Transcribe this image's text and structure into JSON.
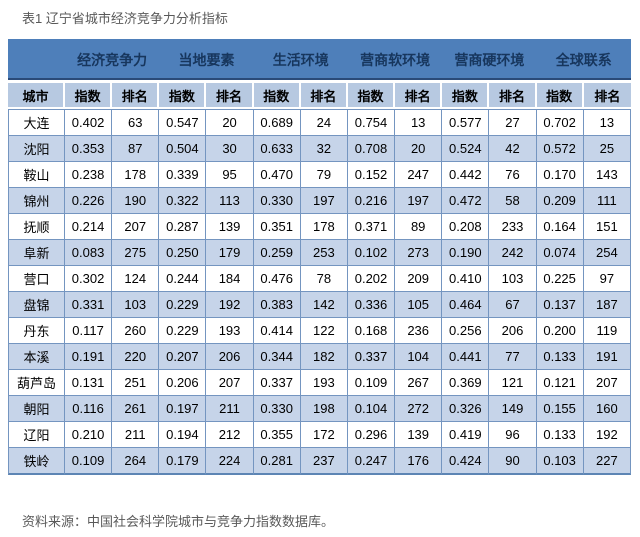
{
  "title": "表1 辽宁省城市经济竞争力分析指标",
  "source": "资料来源：中国社会科学院城市与竞争力指数数据库。",
  "colors": {
    "header_bg": "#4e7fba",
    "header_text": "#17365d",
    "subheader_bg": "#b7c9e1",
    "row_alt_bg": "#c6d4e9",
    "grid_border": "#7495c0",
    "muted_text": "#595959"
  },
  "table": {
    "corner_label": "城市",
    "groups": [
      "经济竞争力",
      "当地要素",
      "生活环境",
      "营商软环境",
      "营商硬环境",
      "全球联系"
    ],
    "index_label": "指数",
    "rank_label": "排名",
    "rows": [
      {
        "city": "大连",
        "cells": [
          "0.402",
          "63",
          "0.547",
          "20",
          "0.689",
          "24",
          "0.754",
          "13",
          "0.577",
          "27",
          "0.702",
          "13"
        ]
      },
      {
        "city": "沈阳",
        "cells": [
          "0.353",
          "87",
          "0.504",
          "30",
          "0.633",
          "32",
          "0.708",
          "20",
          "0.524",
          "42",
          "0.572",
          "25"
        ]
      },
      {
        "city": "鞍山",
        "cells": [
          "0.238",
          "178",
          "0.339",
          "95",
          "0.470",
          "79",
          "0.152",
          "247",
          "0.442",
          "76",
          "0.170",
          "143"
        ]
      },
      {
        "city": "锦州",
        "cells": [
          "0.226",
          "190",
          "0.322",
          "113",
          "0.330",
          "197",
          "0.216",
          "197",
          "0.472",
          "58",
          "0.209",
          "111"
        ]
      },
      {
        "city": "抚顺",
        "cells": [
          "0.214",
          "207",
          "0.287",
          "139",
          "0.351",
          "178",
          "0.371",
          "89",
          "0.208",
          "233",
          "0.164",
          "151"
        ]
      },
      {
        "city": "阜新",
        "cells": [
          "0.083",
          "275",
          "0.250",
          "179",
          "0.259",
          "253",
          "0.102",
          "273",
          "0.190",
          "242",
          "0.074",
          "254"
        ]
      },
      {
        "city": "营口",
        "cells": [
          "0.302",
          "124",
          "0.244",
          "184",
          "0.476",
          "78",
          "0.202",
          "209",
          "0.410",
          "103",
          "0.225",
          "97"
        ]
      },
      {
        "city": "盘锦",
        "cells": [
          "0.331",
          "103",
          "0.229",
          "192",
          "0.383",
          "142",
          "0.336",
          "105",
          "0.464",
          "67",
          "0.137",
          "187"
        ]
      },
      {
        "city": "丹东",
        "cells": [
          "0.117",
          "260",
          "0.229",
          "193",
          "0.414",
          "122",
          "0.168",
          "236",
          "0.256",
          "206",
          "0.200",
          "119"
        ]
      },
      {
        "city": "本溪",
        "cells": [
          "0.191",
          "220",
          "0.207",
          "206",
          "0.344",
          "182",
          "0.337",
          "104",
          "0.441",
          "77",
          "0.133",
          "191"
        ]
      },
      {
        "city": "葫芦岛",
        "cells": [
          "0.131",
          "251",
          "0.206",
          "207",
          "0.337",
          "193",
          "0.109",
          "267",
          "0.369",
          "121",
          "0.121",
          "207"
        ]
      },
      {
        "city": "朝阳",
        "cells": [
          "0.116",
          "261",
          "0.197",
          "211",
          "0.330",
          "198",
          "0.104",
          "272",
          "0.326",
          "149",
          "0.155",
          "160"
        ]
      },
      {
        "city": "辽阳",
        "cells": [
          "0.210",
          "211",
          "0.194",
          "212",
          "0.355",
          "172",
          "0.296",
          "139",
          "0.419",
          "96",
          "0.133",
          "192"
        ]
      },
      {
        "city": "铁岭",
        "cells": [
          "0.109",
          "264",
          "0.179",
          "224",
          "0.281",
          "237",
          "0.247",
          "176",
          "0.424",
          "90",
          "0.103",
          "227"
        ]
      }
    ]
  }
}
